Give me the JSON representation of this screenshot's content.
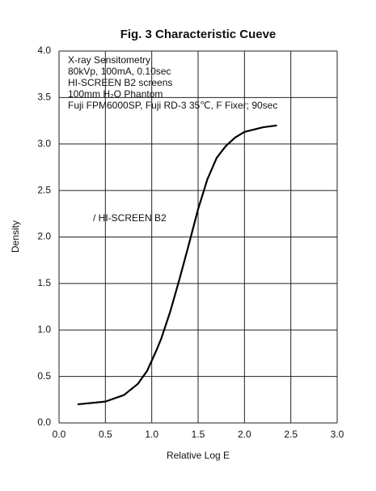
{
  "chart_data": {
    "type": "line",
    "title": "Fig. 3  Characteristic Cueve",
    "annotations": [
      "X-ray Sensitometry",
      "80kVp, 100mA, 0.10sec",
      "HI-SCREEN B2 screens",
      "100mm H₂O Phantom",
      "Fuji FPM6000SP, Fuji RD-3 35℃, F Fixer;  90sec"
    ],
    "x_label": "Relative Log E",
    "y_label": "Density",
    "xlim": [
      0,
      3
    ],
    "ylim": [
      0,
      4
    ],
    "xticks": [
      {
        "value": 0,
        "label": "0.0"
      },
      {
        "value": 0.5,
        "label": "0.5"
      },
      {
        "value": 1,
        "label": "1.0"
      },
      {
        "value": 1.5,
        "label": "1.5"
      },
      {
        "value": 2,
        "label": "2.0"
      },
      {
        "value": 2.5,
        "label": "2.5"
      },
      {
        "value": 3,
        "label": "3.0"
      }
    ],
    "yticks": [
      {
        "value": 0,
        "label": "0.0"
      },
      {
        "value": 0.5,
        "label": "0.5"
      },
      {
        "value": 1,
        "label": "1.0"
      },
      {
        "value": 1.5,
        "label": "1.5"
      },
      {
        "value": 2,
        "label": "2.0"
      },
      {
        "value": 2.5,
        "label": "2.5"
      },
      {
        "value": 3,
        "label": "3.0"
      },
      {
        "value": 3.5,
        "label": "3.5"
      },
      {
        "value": 4,
        "label": "4.0"
      }
    ],
    "grid": true,
    "series": [
      {
        "name": "/ HI-SCREEN B2",
        "color": "#000000",
        "x": [
          0.2,
          0.5,
          0.7,
          0.85,
          0.95,
          1.05,
          1.1,
          1.2,
          1.3,
          1.4,
          1.5,
          1.6,
          1.7,
          1.8,
          1.9,
          2.0,
          2.2,
          2.35
        ],
        "values": [
          0.2,
          0.23,
          0.3,
          0.42,
          0.56,
          0.78,
          0.9,
          1.2,
          1.55,
          1.92,
          2.3,
          2.62,
          2.85,
          2.98,
          3.07,
          3.13,
          3.18,
          3.2
        ]
      }
    ]
  }
}
